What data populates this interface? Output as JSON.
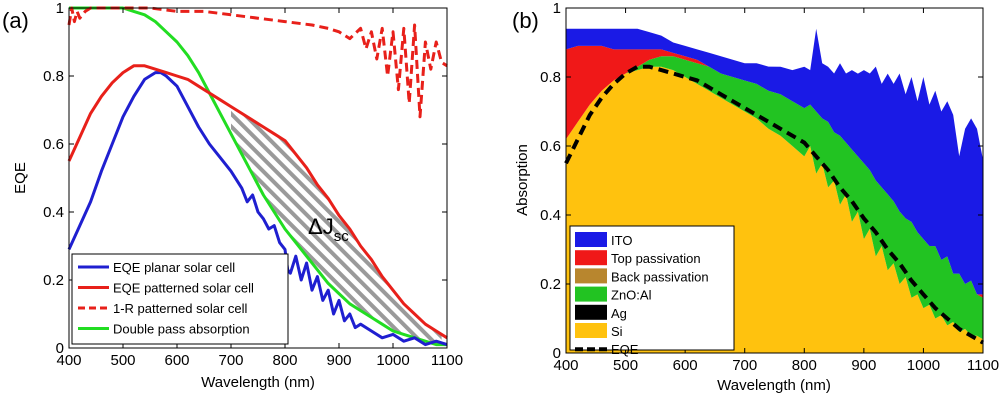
{
  "chart_data": [
    {
      "panel_label": "(a)",
      "type": "line",
      "xlabel": "Wavelength (nm)",
      "ylabel": "EQE",
      "xlim": [
        400,
        1100
      ],
      "ylim": [
        0,
        1
      ],
      "xticks": [
        400,
        500,
        600,
        700,
        800,
        900,
        1000,
        1100
      ],
      "yticks": [
        0,
        0.2,
        0.4,
        0.6,
        0.8,
        1
      ],
      "ytick_labels": [
        "0",
        "0.2",
        "0.4",
        "0.6",
        "0.8",
        "1"
      ],
      "grid": false,
      "legend_position": "bottom-left",
      "annotation": {
        "main": "ΔJ",
        "sub": "sc",
        "x": 860,
        "y": 0.4
      },
      "shaded_region": {
        "between": [
          "EQE patterned solar cell",
          "Double pass absorption"
        ],
        "x_range": [
          700,
          1090
        ],
        "fill": "hatched-gray"
      },
      "series": [
        {
          "name": "EQE planar solar cell",
          "color": "#1f1fd0",
          "dash": "solid",
          "x": [
            400,
            420,
            440,
            460,
            480,
            500,
            520,
            540,
            560,
            570,
            580,
            600,
            620,
            640,
            660,
            680,
            700,
            720,
            730,
            740,
            750,
            760,
            770,
            780,
            790,
            800,
            805,
            810,
            820,
            830,
            840,
            850,
            860,
            870,
            880,
            890,
            900,
            910,
            920,
            930,
            940,
            960,
            980,
            1000,
            1020,
            1040,
            1060,
            1080,
            1100
          ],
          "y": [
            0.29,
            0.36,
            0.43,
            0.52,
            0.6,
            0.68,
            0.74,
            0.79,
            0.81,
            0.81,
            0.8,
            0.77,
            0.71,
            0.65,
            0.6,
            0.56,
            0.52,
            0.47,
            0.43,
            0.45,
            0.4,
            0.38,
            0.35,
            0.36,
            0.31,
            0.29,
            0.23,
            0.22,
            0.27,
            0.2,
            0.25,
            0.17,
            0.21,
            0.14,
            0.17,
            0.1,
            0.14,
            0.08,
            0.1,
            0.06,
            0.07,
            0.05,
            0.03,
            0.04,
            0.02,
            0.03,
            0.01,
            0.02,
            0.01
          ]
        },
        {
          "name": "EQE patterned solar cell",
          "color": "#e8201a",
          "dash": "solid",
          "x": [
            400,
            420,
            440,
            460,
            480,
            500,
            520,
            540,
            560,
            580,
            600,
            620,
            640,
            660,
            680,
            700,
            720,
            740,
            760,
            780,
            800,
            820,
            840,
            860,
            880,
            900,
            920,
            940,
            960,
            980,
            1000,
            1020,
            1040,
            1060,
            1080,
            1100
          ],
          "y": [
            0.55,
            0.62,
            0.69,
            0.74,
            0.78,
            0.81,
            0.83,
            0.83,
            0.82,
            0.81,
            0.8,
            0.79,
            0.77,
            0.75,
            0.73,
            0.71,
            0.69,
            0.67,
            0.65,
            0.63,
            0.61,
            0.57,
            0.53,
            0.48,
            0.44,
            0.39,
            0.35,
            0.3,
            0.26,
            0.21,
            0.17,
            0.13,
            0.1,
            0.07,
            0.05,
            0.03
          ]
        },
        {
          "name": "1-R patterned solar cell",
          "color": "#e8201a",
          "dash": "dashed",
          "x": [
            400,
            405,
            410,
            415,
            420,
            430,
            440,
            460,
            480,
            500,
            550,
            600,
            650,
            700,
            750,
            800,
            850,
            880,
            900,
            920,
            940,
            950,
            960,
            970,
            980,
            990,
            1000,
            1010,
            1020,
            1030,
            1040,
            1050,
            1060,
            1070,
            1080,
            1090,
            1100
          ],
          "y": [
            0.95,
            1.0,
            0.96,
            0.99,
            0.97,
            0.99,
            1.0,
            1.0,
            1.0,
            1.0,
            1.0,
            0.99,
            0.99,
            0.98,
            0.97,
            0.96,
            0.95,
            0.94,
            0.93,
            0.91,
            0.94,
            0.88,
            0.93,
            0.85,
            0.94,
            0.8,
            0.93,
            0.76,
            0.94,
            0.72,
            0.95,
            0.68,
            0.9,
            0.82,
            0.9,
            0.84,
            0.83
          ]
        },
        {
          "name": "Double pass absorption",
          "color": "#22dd22",
          "dash": "solid",
          "x": [
            400,
            450,
            500,
            520,
            540,
            560,
            580,
            600,
            620,
            640,
            660,
            680,
            700,
            720,
            740,
            760,
            780,
            800,
            820,
            840,
            860,
            880,
            900,
            920,
            940,
            960,
            980,
            1000,
            1020,
            1040,
            1060,
            1080,
            1100
          ],
          "y": [
            1.0,
            1.0,
            1.0,
            0.99,
            0.98,
            0.96,
            0.93,
            0.9,
            0.86,
            0.81,
            0.75,
            0.69,
            0.63,
            0.57,
            0.51,
            0.45,
            0.4,
            0.35,
            0.31,
            0.27,
            0.23,
            0.19,
            0.16,
            0.13,
            0.11,
            0.09,
            0.07,
            0.05,
            0.04,
            0.03,
            0.02,
            0.01,
            0.01
          ]
        }
      ]
    },
    {
      "panel_label": "(b)",
      "type": "area",
      "stacked": true,
      "xlabel": "Wavelength (nm)",
      "ylabel": "Absorption",
      "xlim": [
        400,
        1100
      ],
      "ylim": [
        0,
        1
      ],
      "xticks": [
        400,
        500,
        600,
        700,
        800,
        900,
        1000,
        1100
      ],
      "yticks": [
        0,
        0.2,
        0.4,
        0.6,
        0.8,
        1
      ],
      "ytick_labels": [
        "0",
        "0.2",
        "0.4",
        "0.6",
        "0.8",
        "1"
      ],
      "grid": false,
      "legend_position": "bottom-left",
      "x": [
        400,
        420,
        440,
        460,
        480,
        500,
        520,
        540,
        560,
        580,
        600,
        620,
        640,
        660,
        680,
        700,
        720,
        740,
        760,
        780,
        800,
        810,
        820,
        830,
        840,
        850,
        860,
        870,
        880,
        890,
        900,
        910,
        920,
        930,
        940,
        950,
        960,
        970,
        980,
        990,
        1000,
        1010,
        1020,
        1030,
        1040,
        1050,
        1060,
        1070,
        1080,
        1090,
        1100
      ],
      "series": [
        {
          "name": "Si",
          "color": "#ffc20e",
          "values": [
            0.62,
            0.67,
            0.72,
            0.76,
            0.79,
            0.81,
            0.82,
            0.83,
            0.83,
            0.82,
            0.8,
            0.78,
            0.76,
            0.74,
            0.72,
            0.7,
            0.68,
            0.65,
            0.63,
            0.6,
            0.57,
            0.6,
            0.52,
            0.55,
            0.48,
            0.5,
            0.43,
            0.46,
            0.38,
            0.41,
            0.33,
            0.36,
            0.28,
            0.31,
            0.24,
            0.26,
            0.2,
            0.22,
            0.16,
            0.17,
            0.13,
            0.14,
            0.1,
            0.11,
            0.08,
            0.09,
            0.06,
            0.07,
            0.05,
            0.05,
            0.04
          ]
        },
        {
          "name": "Ag",
          "color": "#000000",
          "values": [
            0,
            0,
            0,
            0,
            0,
            0,
            0,
            0,
            0,
            0,
            0,
            0,
            0,
            0,
            0,
            0,
            0,
            0,
            0,
            0,
            0,
            0,
            0,
            0,
            0,
            0,
            0,
            0,
            0,
            0,
            0,
            0,
            0,
            0,
            0,
            0,
            0,
            0,
            0,
            0,
            0,
            0,
            0,
            0,
            0,
            0,
            0,
            0,
            0,
            0,
            0
          ]
        },
        {
          "name": "ZnO:Al",
          "color": "#22c322",
          "values": [
            0,
            0,
            0,
            0,
            0,
            0,
            0.01,
            0.02,
            0.03,
            0.04,
            0.05,
            0.06,
            0.07,
            0.07,
            0.08,
            0.09,
            0.1,
            0.11,
            0.12,
            0.13,
            0.14,
            0.12,
            0.18,
            0.13,
            0.19,
            0.14,
            0.2,
            0.15,
            0.21,
            0.16,
            0.22,
            0.17,
            0.22,
            0.17,
            0.22,
            0.18,
            0.21,
            0.17,
            0.22,
            0.18,
            0.2,
            0.17,
            0.21,
            0.16,
            0.2,
            0.14,
            0.17,
            0.13,
            0.16,
            0.12,
            0.12
          ]
        },
        {
          "name": "Back passivation",
          "color": "#b8862e",
          "values": [
            0,
            0,
            0,
            0,
            0,
            0,
            0,
            0,
            0,
            0,
            0,
            0,
            0,
            0,
            0,
            0,
            0,
            0,
            0,
            0,
            0,
            0,
            0,
            0,
            0,
            0,
            0,
            0,
            0,
            0,
            0,
            0,
            0,
            0,
            0,
            0,
            0,
            0,
            0,
            0,
            0,
            0,
            0,
            0,
            0,
            0,
            0,
            0,
            0,
            0,
            0
          ]
        },
        {
          "name": "Top passivation",
          "color": "#f01818",
          "values": [
            0.26,
            0.22,
            0.17,
            0.13,
            0.09,
            0.07,
            0.05,
            0.03,
            0.02,
            0.01,
            0.01,
            0.01,
            0,
            0,
            0,
            0,
            0,
            0,
            0,
            0,
            0,
            0,
            0,
            0,
            0,
            0,
            0,
            0,
            0,
            0,
            0,
            0,
            0,
            0,
            0,
            0,
            0,
            0,
            0,
            0,
            0,
            0,
            0,
            0,
            0,
            0,
            0,
            0,
            0,
            0,
            0.01
          ]
        },
        {
          "name": "ITO",
          "color": "#1a1ae6",
          "values": [
            0.06,
            0.05,
            0.05,
            0.05,
            0.06,
            0.06,
            0.06,
            0.05,
            0.04,
            0.03,
            0.03,
            0.03,
            0.04,
            0.05,
            0.05,
            0.05,
            0.06,
            0.07,
            0.08,
            0.09,
            0.12,
            0.1,
            0.24,
            0.16,
            0.16,
            0.17,
            0.21,
            0.2,
            0.23,
            0.24,
            0.27,
            0.28,
            0.33,
            0.3,
            0.35,
            0.34,
            0.4,
            0.36,
            0.42,
            0.38,
            0.47,
            0.41,
            0.45,
            0.43,
            0.45,
            0.46,
            0.34,
            0.45,
            0.47,
            0.48,
            0.39
          ]
        }
      ],
      "lines": [
        {
          "name": "EQE",
          "color": "#000000",
          "dash": "dashed",
          "x": [
            400,
            420,
            440,
            460,
            480,
            500,
            520,
            540,
            560,
            580,
            600,
            620,
            640,
            660,
            680,
            700,
            720,
            740,
            760,
            780,
            800,
            820,
            840,
            860,
            880,
            900,
            920,
            940,
            960,
            980,
            1000,
            1020,
            1040,
            1060,
            1080,
            1100
          ],
          "y": [
            0.55,
            0.62,
            0.69,
            0.74,
            0.78,
            0.81,
            0.83,
            0.83,
            0.82,
            0.81,
            0.8,
            0.79,
            0.77,
            0.75,
            0.73,
            0.71,
            0.69,
            0.67,
            0.65,
            0.63,
            0.61,
            0.57,
            0.53,
            0.48,
            0.44,
            0.39,
            0.35,
            0.3,
            0.26,
            0.21,
            0.17,
            0.13,
            0.1,
            0.07,
            0.05,
            0.03
          ]
        }
      ]
    }
  ]
}
